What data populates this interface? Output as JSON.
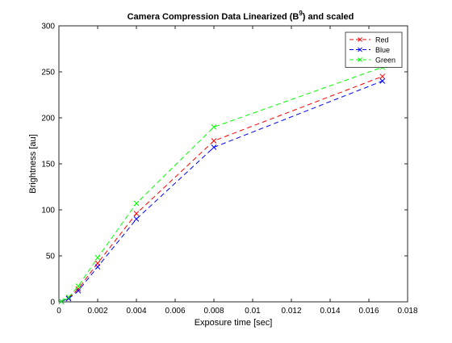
{
  "chart_data": {
    "type": "line",
    "title": {
      "prefix": "Camera Compression Data Linearized (B",
      "superscript": "9",
      "suffix": ") and scaled"
    },
    "xlabel": "Exposure time [sec]",
    "ylabel": "Brightness [au]",
    "xlim": [
      0,
      0.018
    ],
    "ylim": [
      0,
      300
    ],
    "xticks": [
      0,
      0.002,
      0.004,
      0.006,
      0.008,
      0.01,
      0.012,
      0.014,
      0.016,
      0.018
    ],
    "xtick_labels": [
      "0",
      "0.002",
      "0.004",
      "0.006",
      "0.008",
      "0.01",
      "0.012",
      "0.014",
      "0.016",
      "0.018"
    ],
    "yticks": [
      0,
      50,
      100,
      150,
      200,
      250,
      300
    ],
    "ytick_labels": [
      "0",
      "50",
      "100",
      "150",
      "200",
      "250",
      "300"
    ],
    "grid": false,
    "legend_position": "top-right",
    "x": [
      0.000125,
      0.0005,
      0.001,
      0.002,
      0.004,
      0.008,
      0.0167
    ],
    "series": [
      {
        "name": "Red",
        "color": "#ff0000",
        "marker": "x",
        "line": "dashed",
        "values": [
          0.5,
          4,
          14,
          42,
          96,
          175,
          245
        ]
      },
      {
        "name": "Blue",
        "color": "#0000ff",
        "marker": "x",
        "line": "dashed",
        "values": [
          0.5,
          3.5,
          12,
          38,
          90,
          168,
          240
        ]
      },
      {
        "name": "Green",
        "color": "#00ff00",
        "marker": "x",
        "line": "dashed",
        "values": [
          0.5,
          5,
          17,
          48,
          107,
          190,
          255
        ]
      }
    ]
  }
}
